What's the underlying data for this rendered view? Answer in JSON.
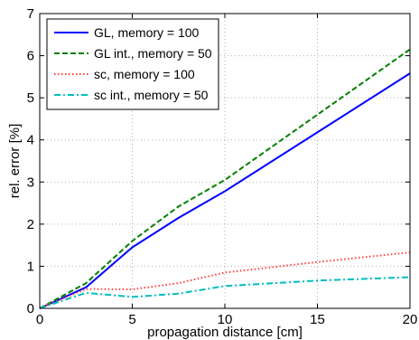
{
  "chart_data": {
    "type": "line",
    "title": "",
    "xlabel": "propagation distance [cm]",
    "ylabel": "rel. error [%]",
    "xlim": [
      0,
      20
    ],
    "ylim": [
      0,
      7
    ],
    "xticks": [
      "0",
      "5",
      "10",
      "15",
      "20"
    ],
    "yticks": [
      "0",
      "1",
      "2",
      "3",
      "4",
      "5",
      "6",
      "7"
    ],
    "grid": true,
    "legend_position": "top-left",
    "series": [
      {
        "name": "GL, memory = 100",
        "color": "#0000ff",
        "dash": "solid",
        "x": [
          0,
          2.5,
          5,
          7.5,
          10,
          20
        ],
        "y": [
          0,
          0.5,
          1.45,
          2.15,
          2.78,
          5.58
        ]
      },
      {
        "name": "GL int., memory = 50",
        "color": "#008000",
        "dash": "dashed",
        "x": [
          0,
          2.5,
          5,
          7.5,
          10,
          20
        ],
        "y": [
          0,
          0.6,
          1.6,
          2.42,
          3.05,
          6.15
        ]
      },
      {
        "name": "sc, memory = 100",
        "color": "#ff4040",
        "dash": "dotted",
        "x": [
          0,
          2.5,
          5,
          7.5,
          10,
          15,
          20
        ],
        "y": [
          0,
          0.46,
          0.45,
          0.6,
          0.85,
          1.1,
          1.33
        ]
      },
      {
        "name": "sc int., memory = 50",
        "color": "#00bfbf",
        "dash": "dashdot",
        "x": [
          0,
          2.5,
          5,
          7.5,
          10,
          15,
          20
        ],
        "y": [
          0,
          0.37,
          0.27,
          0.35,
          0.53,
          0.66,
          0.74
        ]
      }
    ]
  }
}
